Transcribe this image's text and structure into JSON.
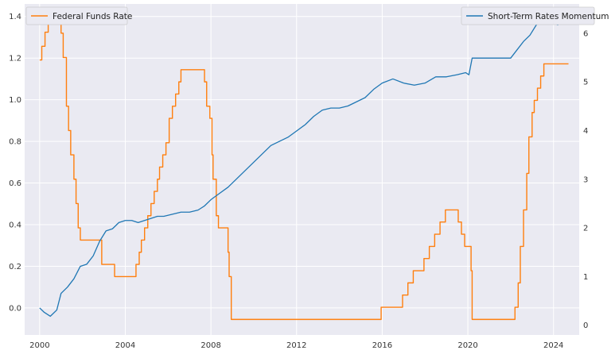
{
  "chart_data": {
    "type": "line",
    "title": "",
    "xlabel": "",
    "ylabel_left": "",
    "ylabel_right": "",
    "x_ticks": [
      "2000",
      "2004",
      "2008",
      "2012",
      "2016",
      "2020",
      "2024"
    ],
    "y_left_ticks": [
      "0.0",
      "0.2",
      "0.4",
      "0.6",
      "0.8",
      "1.0",
      "1.2",
      "1.4"
    ],
    "y_right_ticks": [
      "0",
      "1",
      "2",
      "3",
      "4",
      "5",
      "6"
    ],
    "xlim": [
      1999.3,
      2025.2
    ],
    "ylim_left": [
      -0.13,
      1.46
    ],
    "ylim_right": [
      -0.2,
      6.6
    ],
    "grid": true,
    "background": "#eaeaf2",
    "legend_left": {
      "position": "top-left",
      "label": "Federal Funds Rate",
      "color": "#ff7f0e"
    },
    "legend_right": {
      "position": "top-right",
      "label": "Short-Term Rates Momentum",
      "color": "#1f77b4"
    },
    "series": [
      {
        "name": "Federal Funds Rate",
        "axis": "right",
        "color": "#ff7f0e",
        "step": true,
        "points": [
          [
            2000.0,
            5.45
          ],
          [
            2000.1,
            5.73
          ],
          [
            2000.25,
            6.02
          ],
          [
            2000.4,
            6.5
          ],
          [
            2001.0,
            6.0
          ],
          [
            2001.1,
            5.5
          ],
          [
            2001.25,
            4.5
          ],
          [
            2001.35,
            4.0
          ],
          [
            2001.45,
            3.5
          ],
          [
            2001.6,
            3.0
          ],
          [
            2001.7,
            2.5
          ],
          [
            2001.8,
            2.0
          ],
          [
            2001.9,
            1.75
          ],
          [
            2002.9,
            1.25
          ],
          [
            2003.5,
            1.0
          ],
          [
            2004.5,
            1.25
          ],
          [
            2004.65,
            1.5
          ],
          [
            2004.75,
            1.75
          ],
          [
            2004.9,
            2.0
          ],
          [
            2005.05,
            2.25
          ],
          [
            2005.2,
            2.5
          ],
          [
            2005.35,
            2.75
          ],
          [
            2005.5,
            3.0
          ],
          [
            2005.6,
            3.25
          ],
          [
            2005.75,
            3.5
          ],
          [
            2005.9,
            3.75
          ],
          [
            2006.05,
            4.25
          ],
          [
            2006.2,
            4.5
          ],
          [
            2006.35,
            4.75
          ],
          [
            2006.5,
            5.0
          ],
          [
            2006.6,
            5.25
          ],
          [
            2007.7,
            5.0
          ],
          [
            2007.8,
            4.5
          ],
          [
            2007.95,
            4.25
          ],
          [
            2008.05,
            3.5
          ],
          [
            2008.1,
            3.0
          ],
          [
            2008.25,
            2.25
          ],
          [
            2008.35,
            2.0
          ],
          [
            2008.8,
            1.5
          ],
          [
            2008.85,
            1.0
          ],
          [
            2008.95,
            0.12
          ],
          [
            2015.95,
            0.37
          ],
          [
            2016.95,
            0.62
          ],
          [
            2017.2,
            0.87
          ],
          [
            2017.45,
            1.12
          ],
          [
            2017.95,
            1.37
          ],
          [
            2018.2,
            1.62
          ],
          [
            2018.45,
            1.87
          ],
          [
            2018.7,
            2.12
          ],
          [
            2018.95,
            2.37
          ],
          [
            2019.55,
            2.12
          ],
          [
            2019.7,
            1.87
          ],
          [
            2019.85,
            1.62
          ],
          [
            2020.15,
            1.12
          ],
          [
            2020.2,
            0.12
          ],
          [
            2022.2,
            0.37
          ],
          [
            2022.35,
            0.87
          ],
          [
            2022.45,
            1.62
          ],
          [
            2022.6,
            2.37
          ],
          [
            2022.75,
            3.12
          ],
          [
            2022.85,
            3.87
          ],
          [
            2023.0,
            4.37
          ],
          [
            2023.1,
            4.62
          ],
          [
            2023.25,
            4.87
          ],
          [
            2023.4,
            5.12
          ],
          [
            2023.55,
            5.37
          ],
          [
            2024.7,
            5.37
          ]
        ]
      },
      {
        "name": "Short-Term Rates Momentum",
        "axis": "left",
        "color": "#1f77b4",
        "step": false,
        "points": [
          [
            2000.0,
            0.0
          ],
          [
            2000.2,
            -0.02
          ],
          [
            2000.5,
            -0.04
          ],
          [
            2000.8,
            -0.01
          ],
          [
            2001.0,
            0.07
          ],
          [
            2001.3,
            0.1
          ],
          [
            2001.6,
            0.14
          ],
          [
            2001.9,
            0.2
          ],
          [
            2002.2,
            0.21
          ],
          [
            2002.5,
            0.25
          ],
          [
            2002.8,
            0.32
          ],
          [
            2003.1,
            0.37
          ],
          [
            2003.4,
            0.38
          ],
          [
            2003.7,
            0.41
          ],
          [
            2004.0,
            0.42
          ],
          [
            2004.3,
            0.42
          ],
          [
            2004.6,
            0.41
          ],
          [
            2004.9,
            0.42
          ],
          [
            2005.2,
            0.43
          ],
          [
            2005.5,
            0.44
          ],
          [
            2005.8,
            0.44
          ],
          [
            2006.2,
            0.45
          ],
          [
            2006.6,
            0.46
          ],
          [
            2007.0,
            0.46
          ],
          [
            2007.4,
            0.47
          ],
          [
            2007.7,
            0.49
          ],
          [
            2008.0,
            0.52
          ],
          [
            2008.4,
            0.55
          ],
          [
            2008.8,
            0.58
          ],
          [
            2009.2,
            0.62
          ],
          [
            2009.6,
            0.66
          ],
          [
            2010.0,
            0.7
          ],
          [
            2010.4,
            0.74
          ],
          [
            2010.8,
            0.78
          ],
          [
            2011.2,
            0.8
          ],
          [
            2011.6,
            0.82
          ],
          [
            2012.0,
            0.85
          ],
          [
            2012.4,
            0.88
          ],
          [
            2012.8,
            0.92
          ],
          [
            2013.2,
            0.95
          ],
          [
            2013.6,
            0.96
          ],
          [
            2014.0,
            0.96
          ],
          [
            2014.4,
            0.97
          ],
          [
            2014.8,
            0.99
          ],
          [
            2015.2,
            1.01
          ],
          [
            2015.6,
            1.05
          ],
          [
            2016.0,
            1.08
          ],
          [
            2016.5,
            1.1
          ],
          [
            2017.0,
            1.08
          ],
          [
            2017.5,
            1.07
          ],
          [
            2018.0,
            1.08
          ],
          [
            2018.5,
            1.11
          ],
          [
            2019.0,
            1.11
          ],
          [
            2019.5,
            1.12
          ],
          [
            2019.9,
            1.13
          ],
          [
            2020.05,
            1.12
          ],
          [
            2020.2,
            1.2
          ],
          [
            2020.6,
            1.2
          ],
          [
            2021.0,
            1.2
          ],
          [
            2021.5,
            1.2
          ],
          [
            2022.0,
            1.2
          ],
          [
            2022.3,
            1.24
          ],
          [
            2022.6,
            1.28
          ],
          [
            2022.9,
            1.31
          ],
          [
            2023.2,
            1.36
          ],
          [
            2023.5,
            1.39
          ],
          [
            2023.8,
            1.38
          ],
          [
            2024.0,
            1.37
          ],
          [
            2024.2,
            1.36
          ],
          [
            2024.5,
            1.4
          ],
          [
            2024.6,
            1.42
          ]
        ]
      }
    ]
  }
}
